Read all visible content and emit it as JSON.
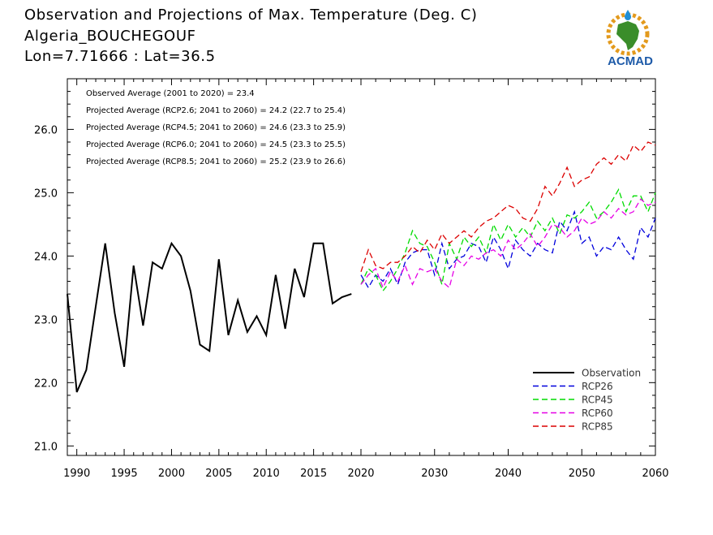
{
  "header": {
    "line1": "Observation and Projections of Max. Temperature (Deg. C)",
    "line2": "Algeria_BOUCHEGOUF",
    "line3": "Lon=7.71666 : Lat=36.5"
  },
  "logo": {
    "text": "ACMAD",
    "icon": "africa-map-logo"
  },
  "chart_data": {
    "type": "line",
    "title": "Observation and Projections of Max. Temperature (Deg. C)",
    "xlabel": "",
    "ylabel": "",
    "ylim": [
      20.85,
      26.8
    ],
    "grid": false,
    "legend_position": "bottom-right",
    "segments": [
      {
        "x_start": 1989,
        "x_end": 2020,
        "tick_labels": [
          "1990",
          "1995",
          "2000",
          "2005",
          "2010",
          "2015",
          "2020"
        ],
        "tick_values": [
          1990,
          1995,
          2000,
          2005,
          2010,
          2015,
          2020
        ]
      },
      {
        "x_start": 2020,
        "x_end": 2060,
        "tick_labels": [
          "2030",
          "2040",
          "2050",
          "2060"
        ],
        "tick_values": [
          2030,
          2040,
          2050,
          2060
        ]
      }
    ],
    "y_ticks": [
      21.0,
      22.0,
      23.0,
      24.0,
      25.0,
      26.0
    ],
    "y_tick_labels": [
      "21.0",
      "22.0",
      "23.0",
      "24.0",
      "25.0",
      "26.0"
    ],
    "annotations": [
      "Observed Average (2001 to 2020) = 23.4",
      "Projected Average (RCP2.6; 2041 to 2060) = 24.2 (22.7 to 25.4)",
      "Projected Average (RCP4.5; 2041 to 2060) = 24.6 (23.3 to 25.9)",
      "Projected Average (RCP6.0; 2041 to 2060) = 24.5 (23.3 to 25.5)",
      "Projected Average (RCP8.5; 2041 to 2060) = 25.2 (23.9 to 26.6)"
    ],
    "observation": {
      "name": "Observation",
      "color": "#000000",
      "x": [
        1989,
        1990,
        1991,
        1992,
        1993,
        1994,
        1995,
        1996,
        1997,
        1998,
        1999,
        2000,
        2001,
        2002,
        2003,
        2004,
        2005,
        2006,
        2007,
        2008,
        2009,
        2010,
        2011,
        2012,
        2013,
        2014,
        2015,
        2016,
        2017,
        2018,
        2019
      ],
      "values": [
        23.4,
        21.85,
        22.2,
        23.2,
        24.2,
        23.1,
        22.25,
        23.85,
        22.9,
        23.9,
        23.8,
        24.2,
        24.0,
        23.45,
        22.6,
        22.5,
        23.95,
        22.75,
        23.3,
        22.8,
        23.05,
        22.75,
        23.7,
        22.85,
        23.8,
        23.35,
        24.2,
        24.2,
        23.25,
        23.35,
        23.4
      ]
    },
    "x": [
      2020,
      2021,
      2022,
      2023,
      2024,
      2025,
      2026,
      2027,
      2028,
      2029,
      2030,
      2031,
      2032,
      2033,
      2034,
      2035,
      2036,
      2037,
      2038,
      2039,
      2040,
      2041,
      2042,
      2043,
      2044,
      2045,
      2046,
      2047,
      2048,
      2049,
      2050,
      2051,
      2052,
      2053,
      2054,
      2055,
      2056,
      2057,
      2058,
      2059,
      2060
    ],
    "series": [
      {
        "name": "RCP26",
        "color": "#0000dc",
        "values": [
          23.7,
          23.5,
          23.7,
          23.6,
          23.8,
          23.55,
          23.9,
          24.05,
          24.1,
          24.1,
          23.7,
          24.2,
          23.8,
          23.95,
          24.0,
          24.2,
          24.15,
          23.9,
          24.3,
          24.1,
          23.8,
          24.25,
          24.1,
          24.0,
          24.2,
          24.1,
          24.05,
          24.55,
          24.4,
          24.7,
          24.2,
          24.3,
          24.0,
          24.15,
          24.1,
          24.3,
          24.1,
          23.95,
          24.45,
          24.3,
          24.6
        ]
      },
      {
        "name": "RCP45",
        "color": "#00dc00",
        "values": [
          23.55,
          23.8,
          23.7,
          23.45,
          23.6,
          23.8,
          24.05,
          24.4,
          24.2,
          24.15,
          23.9,
          23.55,
          24.2,
          23.95,
          24.3,
          24.15,
          24.3,
          24.05,
          24.5,
          24.25,
          24.5,
          24.3,
          24.45,
          24.3,
          24.55,
          24.4,
          24.6,
          24.35,
          24.65,
          24.6,
          24.7,
          24.85,
          24.6,
          24.7,
          24.85,
          25.05,
          24.7,
          24.95,
          24.95,
          24.7,
          25.0
        ]
      },
      {
        "name": "RCP60",
        "color": "#e600e6",
        "values": [
          23.55,
          23.7,
          23.8,
          23.5,
          23.75,
          23.6,
          23.85,
          23.55,
          23.8,
          23.75,
          23.8,
          23.6,
          23.5,
          23.95,
          23.85,
          24.0,
          23.95,
          24.05,
          24.1,
          24.0,
          24.25,
          24.1,
          24.2,
          24.35,
          24.15,
          24.3,
          24.5,
          24.45,
          24.3,
          24.4,
          24.6,
          24.5,
          24.55,
          24.7,
          24.6,
          24.75,
          24.65,
          24.7,
          24.9,
          24.8,
          24.85
        ]
      },
      {
        "name": "RCP85",
        "color": "#dc0000",
        "values": [
          23.75,
          24.1,
          23.85,
          23.8,
          23.9,
          23.9,
          24.0,
          24.15,
          24.05,
          24.25,
          24.1,
          24.35,
          24.2,
          24.3,
          24.4,
          24.3,
          24.45,
          24.55,
          24.6,
          24.7,
          24.8,
          24.75,
          24.6,
          24.55,
          24.75,
          25.1,
          24.95,
          25.15,
          25.4,
          25.1,
          25.2,
          25.25,
          25.45,
          25.55,
          25.45,
          25.6,
          25.5,
          25.75,
          25.65,
          25.8,
          25.75
        ]
      }
    ]
  }
}
